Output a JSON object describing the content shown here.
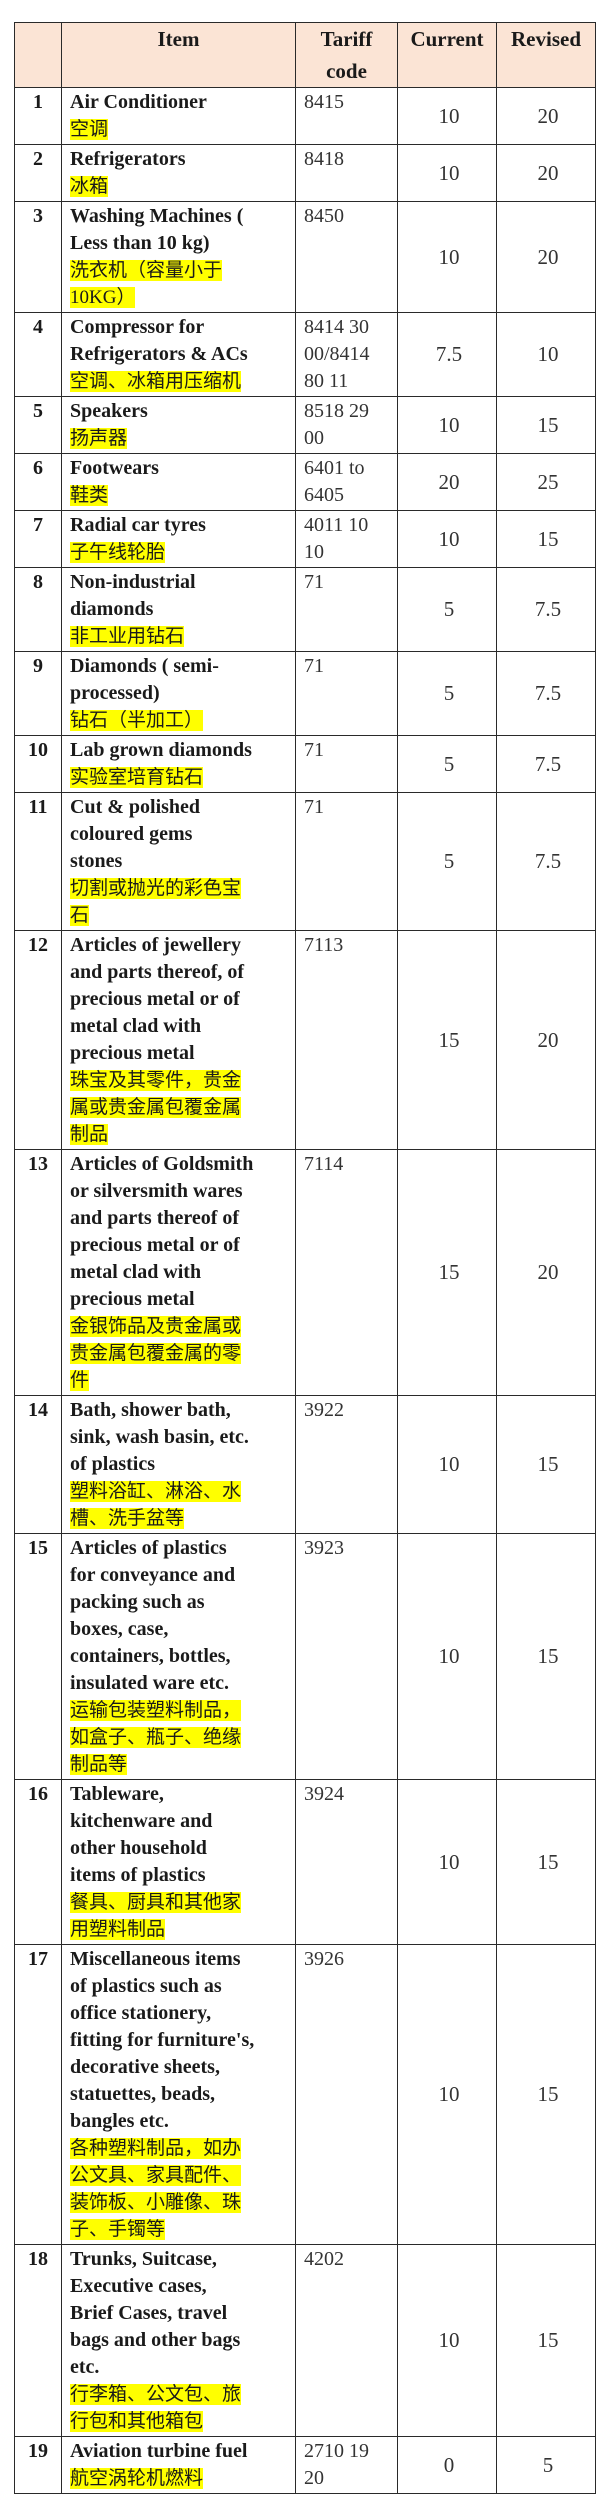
{
  "header": {
    "num": "",
    "item": "Item",
    "tariff_code": "Tariff\ncode",
    "current": "Current",
    "revised": "Revised"
  },
  "highlight_color": "#ffff00",
  "header_color": "#fbe4d5",
  "rows": [
    {
      "num": "1",
      "en": "Air Conditioner",
      "zh": "空调",
      "code": "8415",
      "current": "10",
      "revised": "20"
    },
    {
      "num": "2",
      "en": "Refrigerators",
      "zh": "冰箱",
      "code": "8418",
      "current": "10",
      "revised": "20"
    },
    {
      "num": "3",
      "en": "Washing Machines (\nLess than 10  kg)",
      "zh": "洗衣机（容量小于\n10KG）",
      "code": "8450",
      "current": "10",
      "revised": "20"
    },
    {
      "num": "4",
      "en": "Compressor for\nRefrigerators & ACs",
      "zh": "空调、冰箱用压缩机",
      "code": "8414 30\n00/8414\n80 11",
      "current": "7.5",
      "revised": "10"
    },
    {
      "num": "5",
      "en": "Speakers",
      "zh": "扬声器",
      "code": "8518 29\n00",
      "current": "10",
      "revised": "15"
    },
    {
      "num": "6",
      "en": "Footwears",
      "zh": "鞋类",
      "code": "6401 to\n6405",
      "current": "20",
      "revised": "25"
    },
    {
      "num": "7",
      "en": "Radial car tyres",
      "zh": "子午线轮胎",
      "code": "4011 10\n10",
      "current": "10",
      "revised": "15"
    },
    {
      "num": "8",
      "en": "Non-industrial\ndiamonds",
      "zh": "非工业用钻石",
      "code": "71",
      "current": "5",
      "revised": "7.5"
    },
    {
      "num": "9",
      "en": "Diamonds ( semi-\nprocessed)",
      "zh": "钻石（半加工）",
      "code": "71",
      "current": "5",
      "revised": "7.5"
    },
    {
      "num": "10",
      "en": "Lab grown diamonds",
      "zh": "实验室培育钻石",
      "code": "71",
      "current": "5",
      "revised": "7.5"
    },
    {
      "num": "11",
      "en": "Cut & polished\ncoloured  gems\nstones",
      "zh": "切割或抛光的彩色宝\n石",
      "code": "71",
      "current": "5",
      "revised": "7.5"
    },
    {
      "num": "12",
      "en": "Articles of  jewellery\nand parts thereof, of\nprecious metal or of\nmetal clad with\nprecious  metal",
      "zh": "珠宝及其零件，贵金\n属或贵金属包覆金属\n制品",
      "code": "7113",
      "current": "15",
      "revised": "20"
    },
    {
      "num": "13",
      "en": "Articles of Goldsmith\nor  silversmith wares\nand parts thereof of\nprecious metal or of\nmetal clad with\nprecious metal",
      "zh": "金银饰品及贵金属或\n贵金属包覆金属的零\n件",
      "code": "7114",
      "current": "15",
      "revised": "20"
    },
    {
      "num": "14",
      "en": "Bath, shower bath,\nsink, wash basin, etc.\nof plastics",
      "zh": "塑料浴缸、淋浴、水\n槽、洗手盆等",
      "code": "3922",
      "current": "10",
      "revised": "15"
    },
    {
      "num": "15",
      "en": "Articles of plastics\nfor  conveyance and\npacking such as\nboxes, case,\ncontainers, bottles,\ninsulated  ware etc.",
      "zh": "运输包装塑料制品，\n如盒子、瓶子、绝缘\n制品等",
      "code": "3923",
      "current": "10",
      "revised": "15"
    },
    {
      "num": "16",
      "en": "Tableware,\nkitchenware and\nother household\nitems of plastics",
      "zh": "餐具、厨具和其他家\n用塑料制品",
      "code": "3924",
      "current": "10",
      "revised": "15"
    },
    {
      "num": "17",
      "en": "Miscellaneous items\nof plastics  such as\noffice stationery,\nfitting for furniture's,\ndecorative sheets,\nstatuettes, beads,\nbangles etc.",
      "zh": "各种塑料制品，如办\n公文具、家具配件、\n装饰板、小雕像、珠\n子、手镯等",
      "code": "3926",
      "current": "10",
      "revised": "15"
    },
    {
      "num": "18",
      "en": "Trunks, Suitcase,\nExecutive  cases,\nBrief Cases, travel\nbags and other bags\netc.",
      "zh": "行李箱、公文包、旅\n行包和其他箱包",
      "code": "4202",
      "current": "10",
      "revised": "15"
    },
    {
      "num": "19",
      "en": "Aviation turbine fuel",
      "zh": "航空涡轮机燃料",
      "code": "2710 19\n20",
      "current": "0",
      "revised": "5"
    }
  ]
}
